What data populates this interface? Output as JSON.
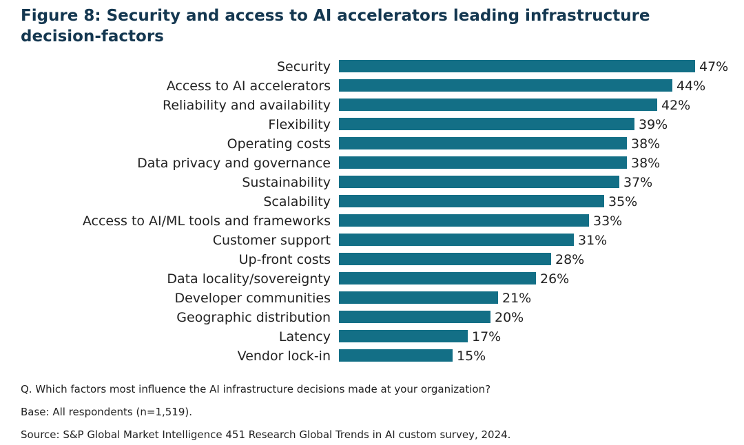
{
  "chart_data": {
    "type": "bar",
    "orientation": "horizontal",
    "title": "Figure 8: Security and access to AI accelerators leading infrastructure decision-factors",
    "categories": [
      "Security",
      "Access to AI accelerators",
      "Reliability and availability",
      "Flexibility",
      "Operating costs",
      "Data privacy and governance",
      "Sustainability",
      "Scalability",
      "Access to AI/ML tools and frameworks",
      "Customer support",
      "Up-front costs",
      "Data locality/sovereignty",
      "Developer communities",
      "Geographic distribution",
      "Latency",
      "Vendor lock-in"
    ],
    "values": [
      47,
      44,
      42,
      39,
      38,
      38,
      37,
      35,
      33,
      31,
      28,
      26,
      21,
      20,
      17,
      15
    ],
    "value_suffix": "%",
    "xlim": [
      0,
      47
    ],
    "grid": false,
    "bar_color": "#136f86"
  },
  "footnotes": {
    "question": "Q. Which factors most influence the AI infrastructure decisions made at your organization?",
    "base": "Base: All respondents (n=1,519).",
    "source": "Source: S&P Global Market Intelligence 451 Research Global Trends in AI custom survey, 2024."
  }
}
